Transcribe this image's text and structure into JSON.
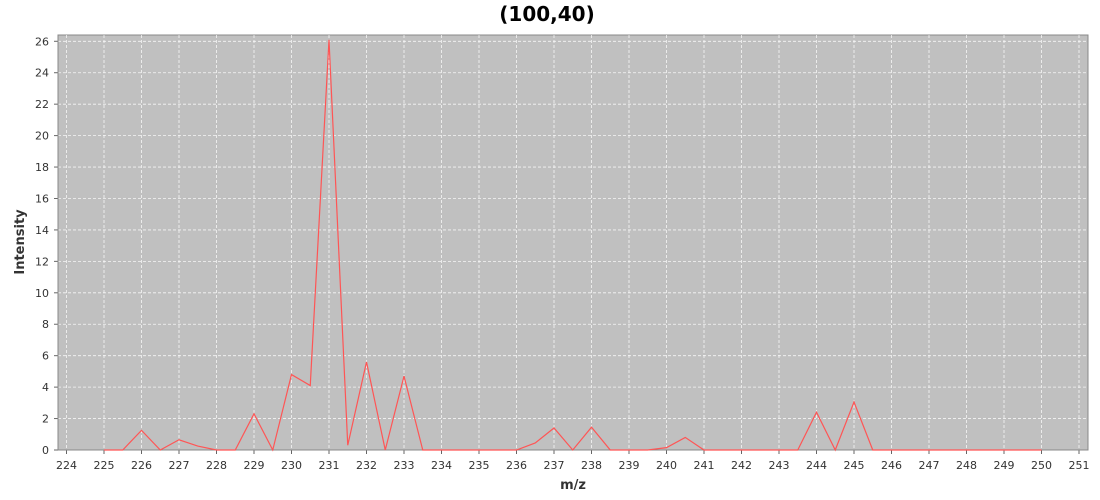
{
  "chart_data": {
    "type": "line",
    "title": "(100,40)",
    "xlabel": "m/z",
    "ylabel": "Intensity",
    "xlim": [
      224,
      251
    ],
    "ylim": [
      0,
      26.4
    ],
    "xticks": [
      "224",
      "225",
      "226",
      "227",
      "228",
      "229",
      "230",
      "231",
      "232",
      "233",
      "234",
      "235",
      "236",
      "237",
      "238",
      "239",
      "240",
      "241",
      "242",
      "243",
      "244",
      "245",
      "246",
      "247",
      "248",
      "249",
      "250",
      "251"
    ],
    "yticks": [
      "0",
      "2",
      "4",
      "6",
      "8",
      "10",
      "12",
      "14",
      "16",
      "18",
      "20",
      "22",
      "24",
      "26"
    ],
    "grid": true,
    "legend": "none",
    "background_color": "#c0c0c0",
    "gridline_color": "#ffffff",
    "series": [
      {
        "color": "#ff5555",
        "x": [
          225,
          225.5,
          226,
          226.5,
          227,
          227.5,
          228,
          228.5,
          229,
          229.5,
          230,
          230.5,
          231,
          231.5,
          232,
          232.5,
          233,
          233.5,
          234,
          234.5,
          235,
          235.5,
          236,
          236.5,
          237,
          237.5,
          238,
          238.5,
          239,
          239.5,
          240,
          240.5,
          241,
          241.5,
          242,
          242.5,
          243,
          243.5,
          244,
          244.5,
          245,
          245.5,
          246,
          246.5,
          247,
          247.5,
          248,
          248.5,
          249,
          249.5,
          250
        ],
        "y": [
          0,
          0,
          1.25,
          0,
          0.65,
          0.25,
          0,
          0,
          2.3,
          0,
          4.8,
          4.1,
          26.1,
          0.3,
          5.6,
          0,
          4.7,
          0,
          0,
          0,
          0,
          0,
          0,
          0.45,
          1.4,
          0,
          1.45,
          0,
          0,
          0,
          0.15,
          0.8,
          0,
          0,
          0,
          0,
          0,
          0,
          2.4,
          0,
          3.05,
          0,
          0,
          0,
          0,
          0,
          0,
          0,
          0,
          0,
          0
        ]
      }
    ]
  }
}
